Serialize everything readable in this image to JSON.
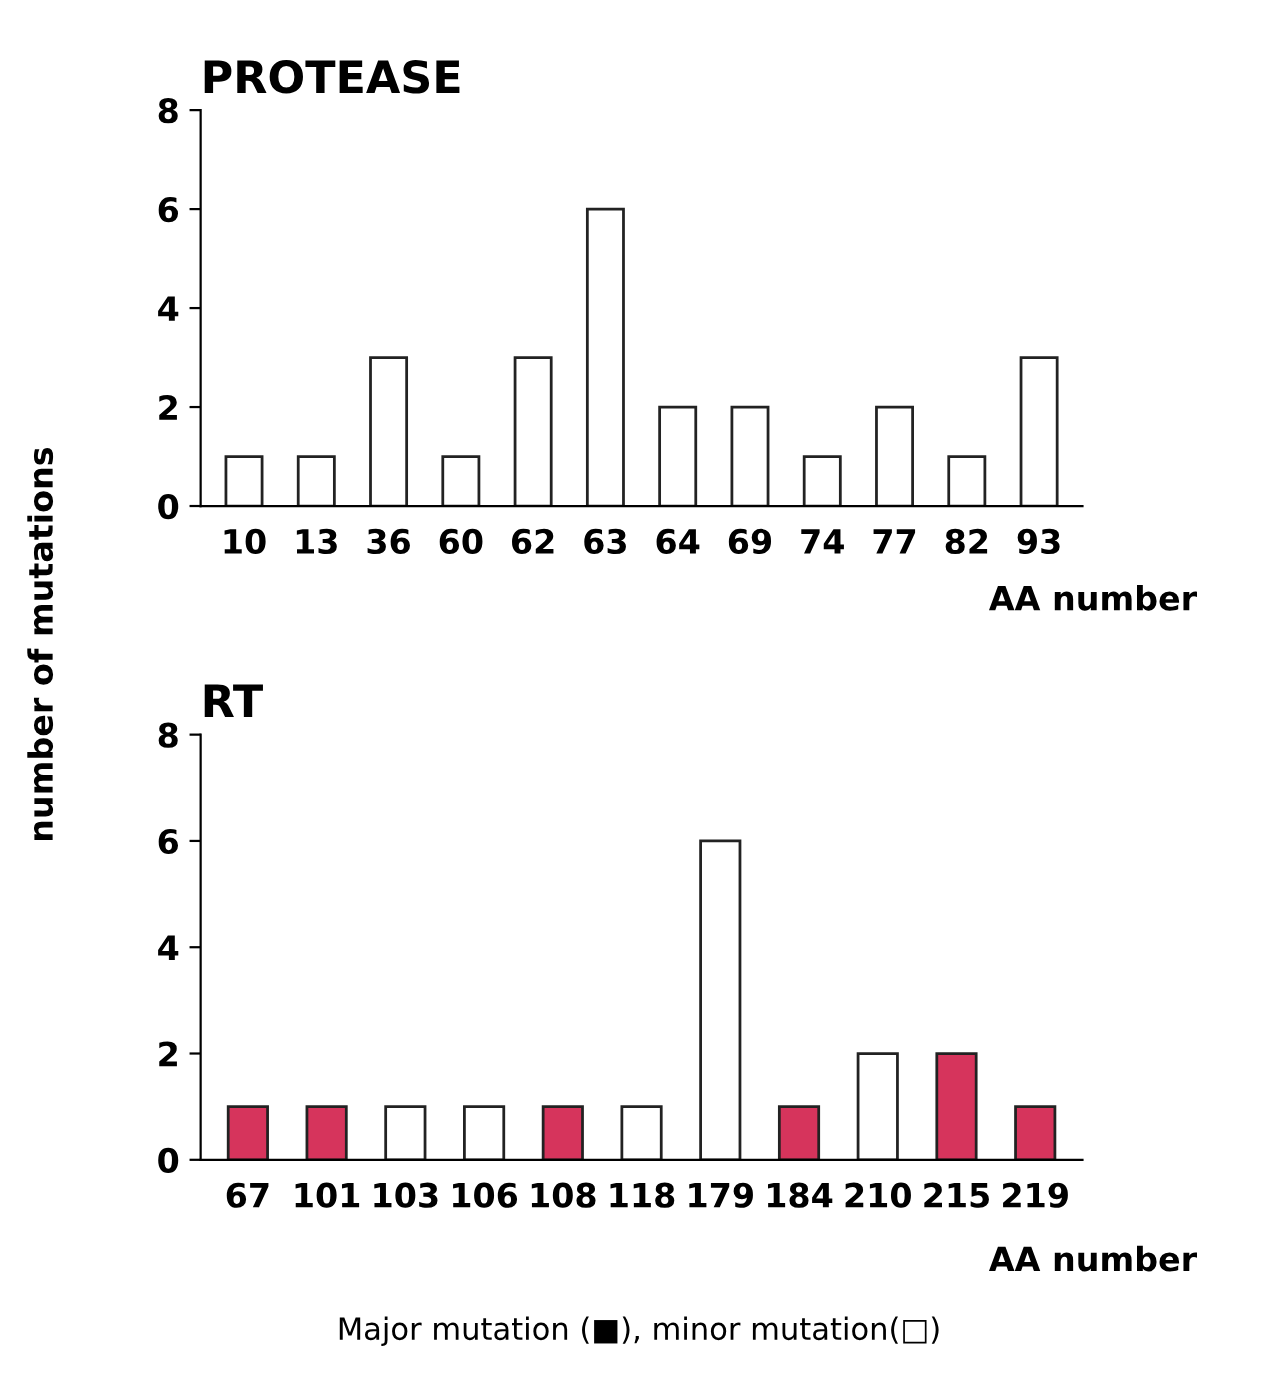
{
  "chart_data": [
    {
      "type": "bar",
      "title": "PROTEASE",
      "ylabel": "number of mutations",
      "xlabel": "AA number",
      "categories": [
        "10",
        "13",
        "36",
        "60",
        "62",
        "63",
        "64",
        "69",
        "74",
        "77",
        "82",
        "93"
      ],
      "values": [
        1,
        1,
        3,
        1,
        3,
        6,
        2,
        2,
        1,
        2,
        1,
        3
      ],
      "colors": [
        "#ffffff",
        "#ffffff",
        "#ffffff",
        "#ffffff",
        "#ffffff",
        "#ffffff",
        "#ffffff",
        "#ffffff",
        "#ffffff",
        "#ffffff",
        "#ffffff",
        "#ffffff"
      ],
      "ylim": [
        0,
        8
      ],
      "yticks": [
        0,
        2,
        4,
        6,
        8
      ],
      "grid": false,
      "legend": false
    },
    {
      "type": "bar",
      "title": "RT",
      "xlabel": "AA number",
      "categories": [
        "67",
        "101",
        "103",
        "106",
        "108",
        "118",
        "179",
        "184",
        "210",
        "215",
        "219"
      ],
      "values": [
        1,
        1,
        1,
        1,
        1,
        1,
        6,
        1,
        2,
        2,
        1
      ],
      "colors": [
        "#d6345c",
        "#d6345c",
        "#ffffff",
        "#ffffff",
        "#d6345c",
        "#ffffff",
        "#ffffff",
        "#d6345c",
        "#ffffff",
        "#d6345c",
        "#d6345c"
      ],
      "ylim": [
        0,
        8
      ],
      "yticks": [
        0,
        2,
        4,
        6,
        8
      ],
      "grid": false,
      "legend": false,
      "annotations": [
        "Major mutation (■), minor mutation(□)"
      ]
    }
  ]
}
